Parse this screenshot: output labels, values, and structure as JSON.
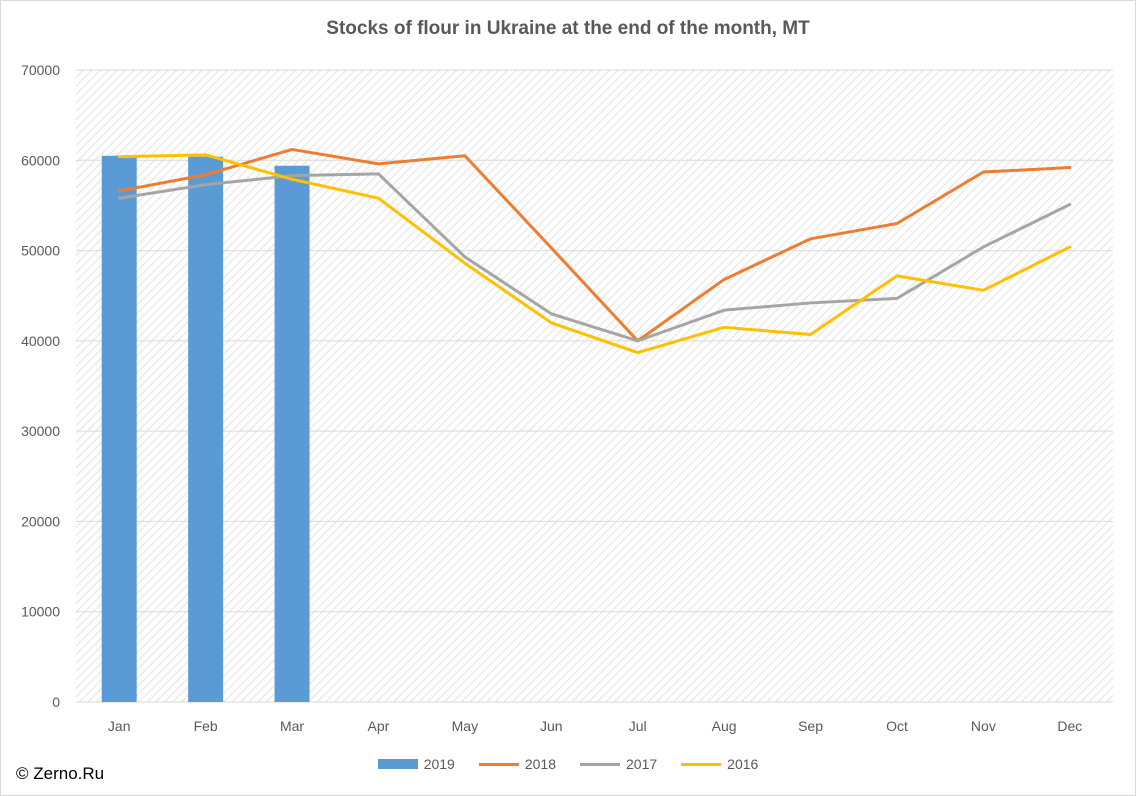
{
  "chart_data": {
    "type": "bar+line",
    "title": "Stocks of flour in Ukraine at the end of the month, MT",
    "categories": [
      "Jan",
      "Feb",
      "Mar",
      "Apr",
      "May",
      "Jun",
      "Jul",
      "Aug",
      "Sep",
      "Oct",
      "Nov",
      "Dec"
    ],
    "ylim": [
      0,
      70000
    ],
    "yticks": [
      0,
      10000,
      20000,
      30000,
      40000,
      50000,
      60000,
      70000
    ],
    "grid": true,
    "legend_position": "bottom",
    "series": [
      {
        "name": "2019",
        "kind": "bar",
        "color": "#5b9bd5",
        "values": [
          60500,
          60400,
          59400,
          null,
          null,
          null,
          null,
          null,
          null,
          null,
          null,
          null
        ]
      },
      {
        "name": "2018",
        "kind": "line",
        "color": "#ed7d31",
        "values": [
          56600,
          58400,
          61200,
          59600,
          60500,
          50300,
          40000,
          46800,
          51300,
          53000,
          58700,
          59200
        ]
      },
      {
        "name": "2017",
        "kind": "line",
        "color": "#a5a5a5",
        "values": [
          55800,
          57300,
          58300,
          58500,
          49300,
          43000,
          40000,
          43400,
          44200,
          44700,
          50400,
          55100
        ]
      },
      {
        "name": "2016",
        "kind": "line",
        "color": "#ffc000",
        "values": [
          60400,
          60600,
          57900,
          55800,
          48600,
          42000,
          38700,
          41500,
          40700,
          47200,
          45600,
          50400
        ]
      }
    ]
  },
  "credit": "© Zerno.Ru"
}
